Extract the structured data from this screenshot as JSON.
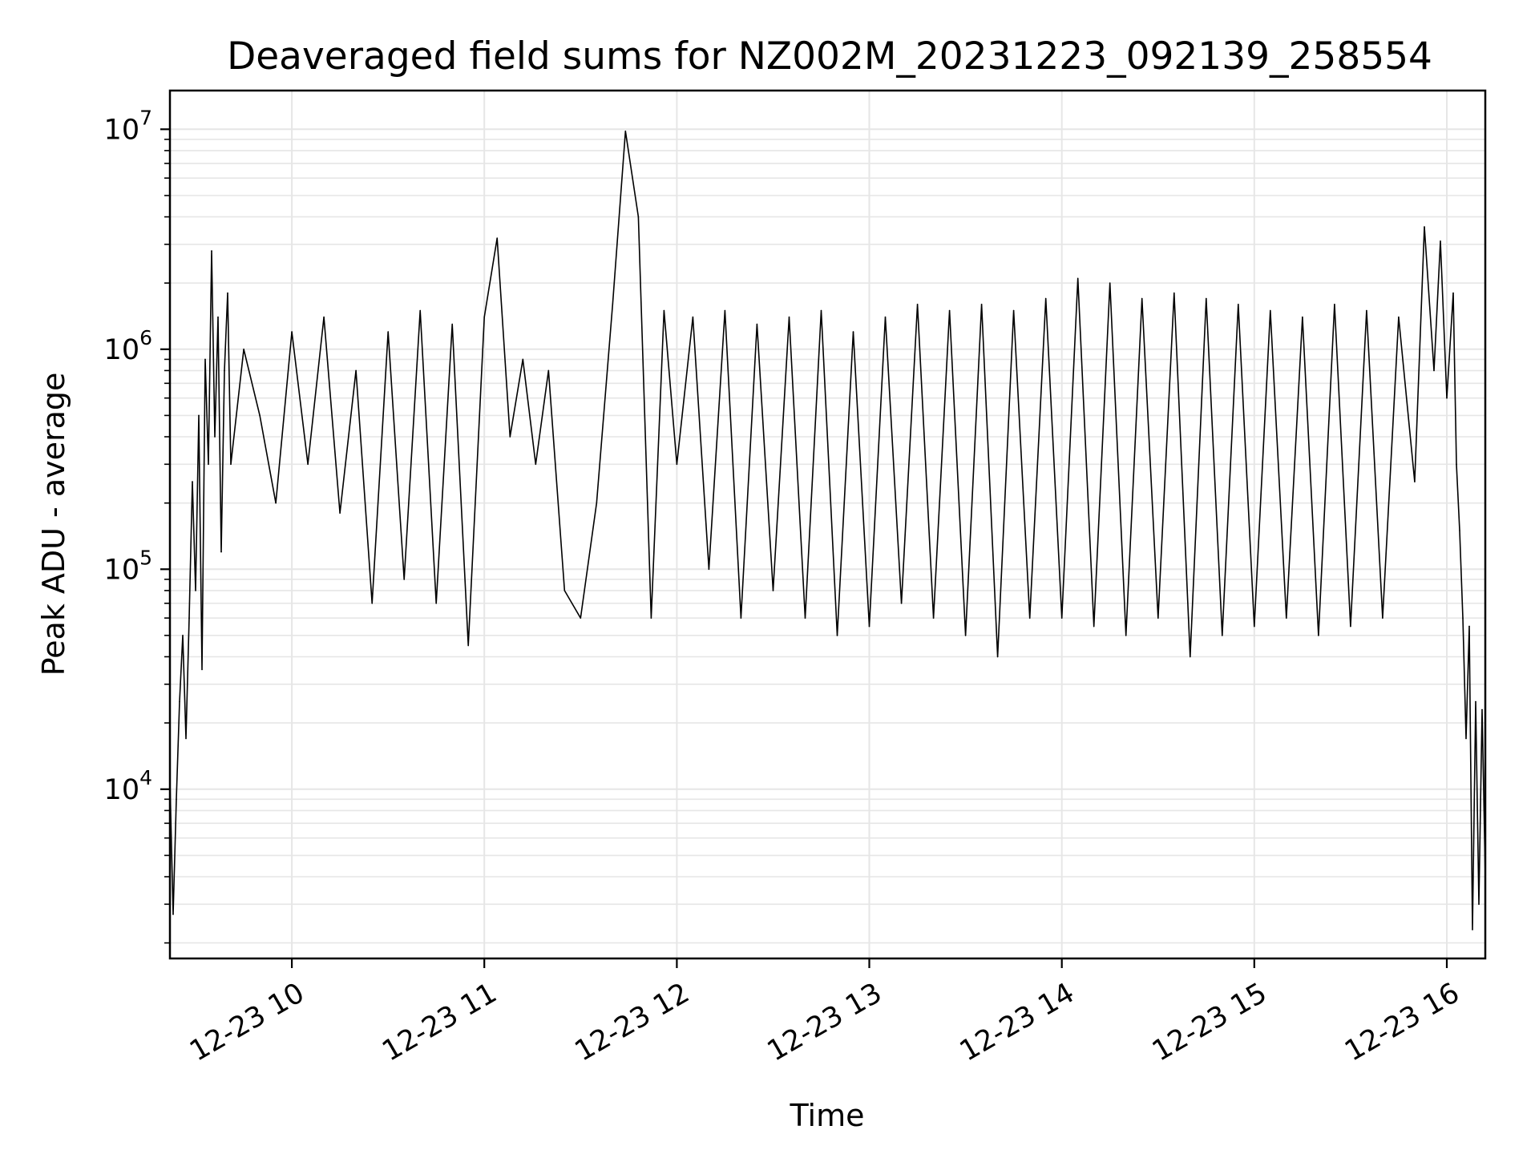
{
  "chart_data": {
    "type": "line",
    "title": "Deaveraged field sums for NZ002M_20231223_092139_258554",
    "xlabel": "Time",
    "ylabel": "Peak ADU - average",
    "x_scale": "time",
    "y_scale": "log",
    "x_range": [
      "12-23 09:22",
      "12-23 16:12"
    ],
    "y_range": [
      1700,
      15000000
    ],
    "grid": true,
    "line_color": "#000000",
    "x_ticks": [
      {
        "label": "12-23 10",
        "time": "12-23 10:00"
      },
      {
        "label": "12-23 11",
        "time": "12-23 11:00"
      },
      {
        "label": "12-23 12",
        "time": "12-23 12:00"
      },
      {
        "label": "12-23 13",
        "time": "12-23 13:00"
      },
      {
        "label": "12-23 14",
        "time": "12-23 14:00"
      },
      {
        "label": "12-23 15",
        "time": "12-23 15:00"
      },
      {
        "label": "12-23 16",
        "time": "12-23 16:00"
      }
    ],
    "y_ticks": [
      {
        "base": "10",
        "exp": "4",
        "value": 10000
      },
      {
        "base": "10",
        "exp": "5",
        "value": 100000
      },
      {
        "base": "10",
        "exp": "6",
        "value": 1000000
      },
      {
        "base": "10",
        "exp": "7",
        "value": 10000000
      }
    ],
    "series": [
      {
        "points": [
          [
            "12-23 09:22",
            11000
          ],
          [
            "12-23 09:23",
            2700
          ],
          [
            "12-23 09:24",
            9000
          ],
          [
            "12-23 09:25",
            25000
          ],
          [
            "12-23 09:26",
            50000
          ],
          [
            "12-23 09:27",
            17000
          ],
          [
            "12-23 09:28",
            60000
          ],
          [
            "12-23 09:29",
            250000
          ],
          [
            "12-23 09:30",
            80000
          ],
          [
            "12-23 09:31",
            500000
          ],
          [
            "12-23 09:32",
            35000
          ],
          [
            "12-23 09:33",
            900000
          ],
          [
            "12-23 09:34",
            300000
          ],
          [
            "12-23 09:35",
            2800000
          ],
          [
            "12-23 09:36",
            400000
          ],
          [
            "12-23 09:37",
            1400000
          ],
          [
            "12-23 09:38",
            120000
          ],
          [
            "12-23 09:39",
            800000
          ],
          [
            "12-23 09:40",
            1800000
          ],
          [
            "12-23 09:41",
            300000
          ],
          [
            "12-23 09:45",
            1000000
          ],
          [
            "12-23 09:50",
            500000
          ],
          [
            "12-23 09:55",
            200000
          ],
          [
            "12-23 10:00",
            1200000
          ],
          [
            "12-23 10:05",
            300000
          ],
          [
            "12-23 10:10",
            1400000
          ],
          [
            "12-23 10:15",
            180000
          ],
          [
            "12-23 10:20",
            800000
          ],
          [
            "12-23 10:25",
            70000
          ],
          [
            "12-23 10:30",
            1200000
          ],
          [
            "12-23 10:35",
            90000
          ],
          [
            "12-23 10:40",
            1500000
          ],
          [
            "12-23 10:45",
            70000
          ],
          [
            "12-23 10:50",
            1300000
          ],
          [
            "12-23 10:55",
            45000
          ],
          [
            "12-23 11:00",
            1400000
          ],
          [
            "12-23 11:04",
            3200000
          ],
          [
            "12-23 11:08",
            400000
          ],
          [
            "12-23 11:12",
            900000
          ],
          [
            "12-23 11:16",
            300000
          ],
          [
            "12-23 11:20",
            800000
          ],
          [
            "12-23 11:25",
            80000
          ],
          [
            "12-23 11:30",
            60000
          ],
          [
            "12-23 11:35",
            200000
          ],
          [
            "12-23 11:40",
            1600000
          ],
          [
            "12-23 11:44",
            9800000
          ],
          [
            "12-23 11:48",
            4000000
          ],
          [
            "12-23 11:52",
            60000
          ],
          [
            "12-23 11:56",
            1500000
          ],
          [
            "12-23 12:00",
            300000
          ],
          [
            "12-23 12:05",
            1400000
          ],
          [
            "12-23 12:10",
            100000
          ],
          [
            "12-23 12:15",
            1500000
          ],
          [
            "12-23 12:20",
            60000
          ],
          [
            "12-23 12:25",
            1300000
          ],
          [
            "12-23 12:30",
            80000
          ],
          [
            "12-23 12:35",
            1400000
          ],
          [
            "12-23 12:40",
            60000
          ],
          [
            "12-23 12:45",
            1500000
          ],
          [
            "12-23 12:50",
            50000
          ],
          [
            "12-23 12:55",
            1200000
          ],
          [
            "12-23 13:00",
            55000
          ],
          [
            "12-23 13:05",
            1400000
          ],
          [
            "12-23 13:10",
            70000
          ],
          [
            "12-23 13:15",
            1600000
          ],
          [
            "12-23 13:20",
            60000
          ],
          [
            "12-23 13:25",
            1500000
          ],
          [
            "12-23 13:30",
            50000
          ],
          [
            "12-23 13:35",
            1600000
          ],
          [
            "12-23 13:40",
            40000
          ],
          [
            "12-23 13:45",
            1500000
          ],
          [
            "12-23 13:50",
            60000
          ],
          [
            "12-23 13:55",
            1700000
          ],
          [
            "12-23 14:00",
            60000
          ],
          [
            "12-23 14:05",
            2100000
          ],
          [
            "12-23 14:10",
            55000
          ],
          [
            "12-23 14:15",
            2000000
          ],
          [
            "12-23 14:20",
            50000
          ],
          [
            "12-23 14:25",
            1700000
          ],
          [
            "12-23 14:30",
            60000
          ],
          [
            "12-23 14:35",
            1800000
          ],
          [
            "12-23 14:40",
            40000
          ],
          [
            "12-23 14:45",
            1700000
          ],
          [
            "12-23 14:50",
            50000
          ],
          [
            "12-23 14:55",
            1600000
          ],
          [
            "12-23 15:00",
            55000
          ],
          [
            "12-23 15:05",
            1500000
          ],
          [
            "12-23 15:10",
            60000
          ],
          [
            "12-23 15:15",
            1400000
          ],
          [
            "12-23 15:20",
            50000
          ],
          [
            "12-23 15:25",
            1600000
          ],
          [
            "12-23 15:30",
            55000
          ],
          [
            "12-23 15:35",
            1500000
          ],
          [
            "12-23 15:40",
            60000
          ],
          [
            "12-23 15:45",
            1400000
          ],
          [
            "12-23 15:50",
            250000
          ],
          [
            "12-23 15:53",
            3600000
          ],
          [
            "12-23 15:56",
            800000
          ],
          [
            "12-23 15:58",
            3100000
          ],
          [
            "12-23 16:00",
            600000
          ],
          [
            "12-23 16:02",
            1800000
          ],
          [
            "12-23 16:03",
            300000
          ],
          [
            "12-23 16:04",
            150000
          ],
          [
            "12-23 16:05",
            60000
          ],
          [
            "12-23 16:06",
            17000
          ],
          [
            "12-23 16:07",
            55000
          ],
          [
            "12-23 16:08",
            2300
          ],
          [
            "12-23 16:09",
            25000
          ],
          [
            "12-23 16:10",
            3000
          ],
          [
            "12-23 16:11",
            23000
          ],
          [
            "12-23 16:12",
            4000
          ]
        ]
      }
    ]
  }
}
